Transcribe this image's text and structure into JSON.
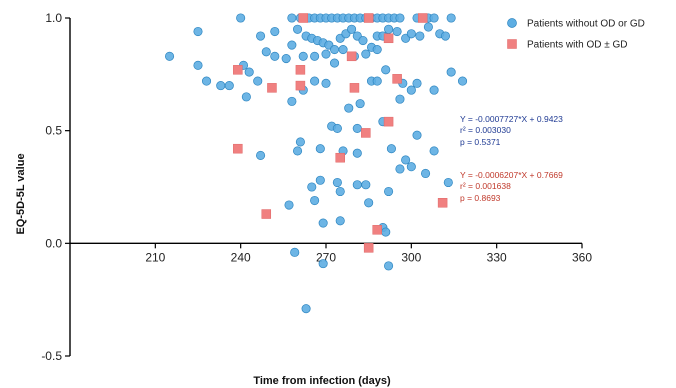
{
  "chart_data": {
    "type": "scatter",
    "title": "",
    "xlabel": "Time from infection (days)",
    "ylabel": "EQ-5D-5L value",
    "xlim": [
      180,
      360
    ],
    "ylim": [
      -0.5,
      1.0
    ],
    "xticks": [
      "210",
      "240",
      "270",
      "300",
      "330",
      "360"
    ],
    "yticks": [
      "-0.5",
      "0.0",
      "0.5",
      "1.0"
    ],
    "xtick_values": [
      210,
      240,
      270,
      300,
      330,
      360
    ],
    "ytick_values": [
      -0.5,
      0.0,
      0.5,
      1.0
    ],
    "grid": false,
    "legend_position": "top-right",
    "series": [
      {
        "name": "Patients without OD or GD",
        "marker": "circle",
        "color": "#5dade2",
        "points": [
          [
            240,
            1.0
          ],
          [
            258,
            1.0
          ],
          [
            261,
            1.0
          ],
          [
            264,
            1.0
          ],
          [
            266,
            1.0
          ],
          [
            268,
            1.0
          ],
          [
            270,
            1.0
          ],
          [
            272,
            1.0
          ],
          [
            274,
            1.0
          ],
          [
            276,
            1.0
          ],
          [
            278,
            1.0
          ],
          [
            280,
            1.0
          ],
          [
            282,
            1.0
          ],
          [
            284,
            1.0
          ],
          [
            286,
            1.0
          ],
          [
            288,
            1.0
          ],
          [
            290,
            1.0
          ],
          [
            292,
            1.0
          ],
          [
            294,
            1.0
          ],
          [
            296,
            1.0
          ],
          [
            302,
            1.0
          ],
          [
            304,
            1.0
          ],
          [
            306,
            1.0
          ],
          [
            308,
            1.0
          ],
          [
            314,
            1.0
          ],
          [
            215,
            0.83
          ],
          [
            225,
            0.94
          ],
          [
            247,
            0.92
          ],
          [
            252,
            0.94
          ],
          [
            258,
            0.88
          ],
          [
            260,
            0.95
          ],
          [
            263,
            0.92
          ],
          [
            265,
            0.91
          ],
          [
            267,
            0.9
          ],
          [
            269,
            0.89
          ],
          [
            271,
            0.88
          ],
          [
            273,
            0.86
          ],
          [
            275,
            0.91
          ],
          [
            277,
            0.93
          ],
          [
            279,
            0.95
          ],
          [
            281,
            0.92
          ],
          [
            283,
            0.9
          ],
          [
            286,
            0.87
          ],
          [
            288,
            0.92
          ],
          [
            290,
            0.92
          ],
          [
            292,
            0.95
          ],
          [
            295,
            0.94
          ],
          [
            298,
            0.91
          ],
          [
            300,
            0.93
          ],
          [
            303,
            0.92
          ],
          [
            306,
            0.96
          ],
          [
            310,
            0.93
          ],
          [
            312,
            0.92
          ],
          [
            225,
            0.79
          ],
          [
            228,
            0.72
          ],
          [
            233,
            0.7
          ],
          [
            236,
            0.7
          ],
          [
            241,
            0.79
          ],
          [
            243,
            0.76
          ],
          [
            246,
            0.72
          ],
          [
            249,
            0.85
          ],
          [
            252,
            0.83
          ],
          [
            256,
            0.82
          ],
          [
            262,
            0.83
          ],
          [
            266,
            0.83
          ],
          [
            270,
            0.84
          ],
          [
            273,
            0.8
          ],
          [
            276,
            0.86
          ],
          [
            280,
            0.83
          ],
          [
            284,
            0.84
          ],
          [
            288,
            0.86
          ],
          [
            291,
            0.77
          ],
          [
            297,
            0.71
          ],
          [
            242,
            0.65
          ],
          [
            258,
            0.63
          ],
          [
            262,
            0.68
          ],
          [
            266,
            0.72
          ],
          [
            270,
            0.71
          ],
          [
            278,
            0.6
          ],
          [
            282,
            0.62
          ],
          [
            286,
            0.72
          ],
          [
            288,
            0.72
          ],
          [
            296,
            0.64
          ],
          [
            300,
            0.68
          ],
          [
            302,
            0.71
          ],
          [
            308,
            0.68
          ],
          [
            314,
            0.76
          ],
          [
            318,
            0.72
          ],
          [
            272,
            0.52
          ],
          [
            274,
            0.51
          ],
          [
            281,
            0.51
          ],
          [
            290,
            0.54
          ],
          [
            296,
            0.33
          ],
          [
            300,
            0.34
          ],
          [
            302,
            0.48
          ],
          [
            308,
            0.41
          ],
          [
            305,
            0.31
          ],
          [
            260,
            0.41
          ],
          [
            261,
            0.45
          ],
          [
            247,
            0.39
          ],
          [
            268,
            0.42
          ],
          [
            276,
            0.41
          ],
          [
            281,
            0.4
          ],
          [
            293,
            0.42
          ],
          [
            298,
            0.37
          ],
          [
            265,
            0.25
          ],
          [
            268,
            0.28
          ],
          [
            274,
            0.27
          ],
          [
            281,
            0.26
          ],
          [
            284,
            0.26
          ],
          [
            292,
            0.23
          ],
          [
            313,
            0.27
          ],
          [
            257,
            0.17
          ],
          [
            266,
            0.19
          ],
          [
            275,
            0.23
          ],
          [
            285,
            0.18
          ],
          [
            269,
            0.09
          ],
          [
            275,
            0.1
          ],
          [
            290,
            0.07
          ],
          [
            291,
            0.05
          ],
          [
            259,
            -0.04
          ],
          [
            269,
            -0.09
          ],
          [
            292,
            -0.1
          ],
          [
            263,
            -0.29
          ]
        ]
      },
      {
        "name": "Patients with OD ± GD",
        "marker": "square",
        "color": "#f08080",
        "points": [
          [
            262,
            1.0
          ],
          [
            285,
            1.0
          ],
          [
            304,
            1.0
          ],
          [
            292,
            0.91
          ],
          [
            279,
            0.83
          ],
          [
            239,
            0.77
          ],
          [
            261,
            0.77
          ],
          [
            295,
            0.73
          ],
          [
            251,
            0.69
          ],
          [
            261,
            0.7
          ],
          [
            280,
            0.69
          ],
          [
            292,
            0.54
          ],
          [
            284,
            0.49
          ],
          [
            239,
            0.42
          ],
          [
            275,
            0.38
          ],
          [
            249,
            0.13
          ],
          [
            311,
            0.18
          ],
          [
            288,
            0.06
          ],
          [
            285,
            -0.02
          ]
        ]
      }
    ],
    "annotations": [
      {
        "series": "Patients without OD or GD",
        "color": "#1f3a93",
        "lines": [
          "Y = -0.0007727*X + 0.9423",
          "r² = 0.003030",
          "p = 0.5371"
        ]
      },
      {
        "series": "Patients with OD ± GD",
        "color": "#c0392b",
        "lines": [
          "Y = -0.0006207*X + 0.7669",
          "r² = 0.001638",
          "p = 0.8693"
        ]
      }
    ]
  }
}
